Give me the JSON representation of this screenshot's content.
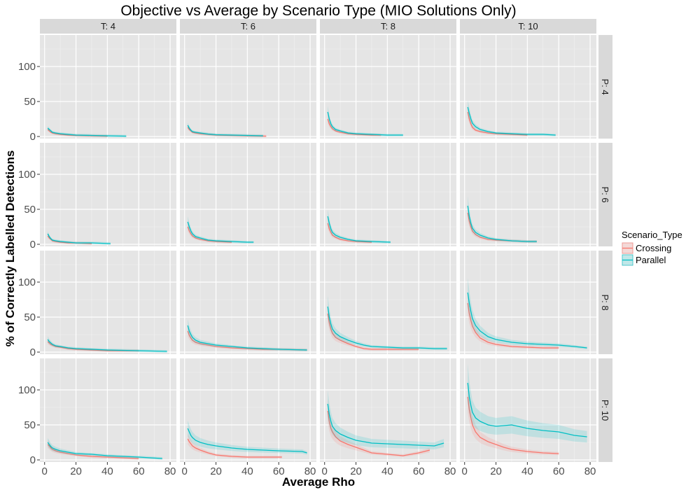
{
  "chart_data": {
    "type": "line",
    "title": "Objective vs Average by Scenario Type (MIO Solutions Only)",
    "xlabel": "Average Rho",
    "ylabel": "% of Correctly Labelled Detections",
    "xlim": [
      -3,
      84
    ],
    "ylim": [
      -3,
      145
    ],
    "x_ticks": [
      0,
      20,
      40,
      60,
      80
    ],
    "y_ticks": [
      0,
      50,
      100
    ],
    "grid": true,
    "legend": {
      "title": "Scenario_Type",
      "position": "right",
      "entries": [
        {
          "name": "Crossing",
          "color": "#F8766D"
        },
        {
          "name": "Parallel",
          "color": "#00BFC4"
        }
      ]
    },
    "facet_cols": [
      "T: 4",
      "T: 6",
      "T: 8",
      "T: 10"
    ],
    "facet_rows": [
      "P: 4",
      "P: 6",
      "P: 8",
      "P: 10"
    ],
    "panels": [
      {
        "row": 0,
        "col": 0,
        "series": [
          {
            "name": "Crossing",
            "x": [
              2,
              3,
              4,
              5,
              7,
              10,
              15,
              20,
              30,
              40
            ],
            "y": [
              10,
              8,
              6,
              5,
              4,
              3,
              2,
              1.5,
              1,
              0.5
            ]
          },
          {
            "name": "Parallel",
            "x": [
              2,
              3,
              4,
              5,
              7,
              10,
              15,
              20,
              30,
              40,
              52
            ],
            "y": [
              12,
              10,
              8,
              6,
              5,
              4,
              3,
              2,
              1.5,
              1,
              0.5
            ]
          }
        ]
      },
      {
        "row": 0,
        "col": 1,
        "series": [
          {
            "name": "Crossing",
            "x": [
              2,
              3,
              4,
              5,
              7,
              10,
              15,
              20,
              30,
              40,
              52
            ],
            "y": [
              13,
              10,
              8,
              6,
              5,
              4,
              3,
              2,
              1.5,
              1,
              0.5
            ]
          },
          {
            "name": "Parallel",
            "x": [
              2,
              3,
              4,
              5,
              7,
              10,
              15,
              20,
              30,
              40,
              50
            ],
            "y": [
              16,
              12,
              9,
              7,
              6,
              5,
              3.5,
              2.5,
              2,
              1.5,
              1
            ]
          }
        ]
      },
      {
        "row": 0,
        "col": 2,
        "series": [
          {
            "name": "Crossing",
            "x": [
              2,
              3,
              4,
              5,
              7,
              10,
              15,
              20,
              30,
              36
            ],
            "y": [
              25,
              18,
              14,
              11,
              8,
              6,
              4,
              3,
              2,
              2
            ]
          },
          {
            "name": "Parallel",
            "x": [
              2,
              3,
              4,
              5,
              7,
              10,
              15,
              20,
              30,
              40,
              50
            ],
            "y": [
              35,
              25,
              18,
              14,
              10,
              8,
              5,
              4,
              3,
              2,
              2
            ]
          }
        ]
      },
      {
        "row": 0,
        "col": 3,
        "series": [
          {
            "name": "Crossing",
            "x": [
              2,
              3,
              4,
              5,
              7,
              10,
              15,
              20,
              30,
              40
            ],
            "y": [
              35,
              25,
              18,
              13,
              9,
              7,
              5,
              4,
              3,
              2
            ]
          },
          {
            "name": "Parallel",
            "x": [
              2,
              3,
              4,
              5,
              7,
              10,
              15,
              20,
              30,
              40,
              50,
              58
            ],
            "y": [
              42,
              33,
              25,
              19,
              14,
              10,
              7,
              5,
              4,
              3,
              3,
              2
            ]
          }
        ]
      },
      {
        "row": 1,
        "col": 0,
        "series": [
          {
            "name": "Crossing",
            "x": [
              2,
              3,
              4,
              5,
              7,
              10,
              15,
              20,
              30
            ],
            "y": [
              12,
              9,
              7,
              5,
              4,
              3,
              2,
              2,
              1
            ]
          },
          {
            "name": "Parallel",
            "x": [
              2,
              3,
              4,
              5,
              7,
              10,
              15,
              20,
              30,
              42
            ],
            "y": [
              15,
              11,
              8,
              6,
              5,
              4,
              3,
              2,
              2,
              1
            ]
          }
        ]
      },
      {
        "row": 1,
        "col": 1,
        "series": [
          {
            "name": "Crossing",
            "x": [
              2,
              3,
              4,
              5,
              7,
              10,
              15,
              20,
              30
            ],
            "y": [
              25,
              19,
              15,
              12,
              9,
              7,
              5,
              4,
              3
            ]
          },
          {
            "name": "Parallel",
            "x": [
              2,
              3,
              4,
              5,
              7,
              10,
              15,
              20,
              30,
              40,
              44
            ],
            "y": [
              32,
              25,
              19,
              15,
              11,
              9,
              6,
              5,
              4,
              3,
              3
            ]
          }
        ]
      },
      {
        "row": 1,
        "col": 2,
        "series": [
          {
            "name": "Crossing",
            "x": [
              2,
              3,
              4,
              5,
              7,
              10,
              15,
              20,
              30
            ],
            "y": [
              30,
              22,
              17,
              13,
              10,
              7,
              5,
              4,
              3
            ]
          },
          {
            "name": "Parallel",
            "x": [
              2,
              3,
              4,
              5,
              7,
              10,
              15,
              20,
              30,
              42
            ],
            "y": [
              40,
              30,
              22,
              17,
              13,
              10,
              7,
              5,
              4,
              3
            ]
          }
        ]
      },
      {
        "row": 1,
        "col": 3,
        "series": [
          {
            "name": "Crossing",
            "x": [
              2,
              3,
              4,
              5,
              7,
              10,
              15,
              20,
              30,
              40,
              46
            ],
            "y": [
              45,
              33,
              25,
              19,
              14,
              10,
              7,
              6,
              5,
              4,
              4
            ]
          },
          {
            "name": "Parallel",
            "x": [
              2,
              3,
              4,
              5,
              7,
              10,
              15,
              20,
              30,
              40,
              46
            ],
            "y": [
              55,
              40,
              30,
              23,
              17,
              13,
              9,
              7,
              5,
              4,
              4
            ]
          }
        ]
      },
      {
        "row": 2,
        "col": 0,
        "series": [
          {
            "name": "Crossing",
            "x": [
              2,
              3,
              4,
              5,
              7,
              10,
              15,
              20,
              30,
              40,
              60
            ],
            "y": [
              15,
              13,
              11,
              10,
              8,
              7,
              5,
              4,
              3,
              2,
              2
            ]
          },
          {
            "name": "Parallel",
            "x": [
              2,
              3,
              4,
              5,
              7,
              10,
              15,
              20,
              30,
              40,
              60,
              78
            ],
            "y": [
              18,
              15,
              13,
              11,
              9,
              8,
              6,
              5,
              4,
              3,
              2,
              1
            ]
          }
        ]
      },
      {
        "row": 2,
        "col": 1,
        "series": [
          {
            "name": "Crossing",
            "x": [
              2,
              3,
              4,
              5,
              7,
              10,
              15,
              20,
              30,
              40,
              50,
              60,
              78
            ],
            "y": [
              30,
              24,
              20,
              17,
              14,
              12,
              10,
              8,
              6,
              5,
              4,
              4,
              3
            ]
          },
          {
            "name": "Parallel",
            "x": [
              2,
              3,
              4,
              5,
              7,
              10,
              15,
              20,
              30,
              40,
              50,
              60,
              78
            ],
            "y": [
              38,
              30,
              25,
              21,
              17,
              14,
              12,
              10,
              8,
              6,
              5,
              4,
              3
            ]
          }
        ]
      },
      {
        "row": 2,
        "col": 2,
        "series": [
          {
            "name": "Crossing",
            "x": [
              2,
              3,
              4,
              5,
              7,
              10,
              15,
              20,
              25,
              30,
              40,
              50,
              60
            ],
            "y": [
              55,
              42,
              33,
              27,
              21,
              17,
              12,
              8,
              5,
              4,
              4,
              4,
              4
            ]
          },
          {
            "name": "Parallel",
            "x": [
              2,
              3,
              4,
              5,
              7,
              10,
              15,
              20,
              25,
              30,
              40,
              50,
              60,
              70,
              78
            ],
            "y": [
              65,
              50,
              40,
              33,
              27,
              22,
              17,
              13,
              10,
              8,
              7,
              6,
              6,
              5,
              5
            ]
          }
        ]
      },
      {
        "row": 2,
        "col": 3,
        "series": [
          {
            "name": "Crossing",
            "x": [
              2,
              3,
              4,
              5,
              7,
              10,
              15,
              20,
              30,
              40,
              50,
              60
            ],
            "y": [
              70,
              55,
              45,
              37,
              28,
              20,
              14,
              11,
              8,
              7,
              6,
              6
            ]
          },
          {
            "name": "Parallel",
            "x": [
              2,
              3,
              4,
              5,
              7,
              10,
              15,
              20,
              30,
              40,
              50,
              60,
              70,
              78
            ],
            "y": [
              85,
              70,
              58,
              48,
              38,
              30,
              22,
              18,
              14,
              12,
              11,
              10,
              8,
              6
            ]
          }
        ]
      },
      {
        "row": 3,
        "col": 0,
        "series": [
          {
            "name": "Crossing",
            "x": [
              2,
              3,
              4,
              5,
              7,
              10,
              15,
              20,
              30,
              40,
              50,
              60
            ],
            "y": [
              22,
              20,
              17,
              15,
              13,
              11,
              9,
              7,
              5,
              4,
              3,
              2
            ]
          },
          {
            "name": "Parallel",
            "x": [
              2,
              3,
              4,
              5,
              7,
              10,
              15,
              20,
              30,
              40,
              50,
              60,
              75
            ],
            "y": [
              25,
              22,
              19,
              17,
              15,
              13,
              11,
              9,
              8,
              6,
              5,
              4,
              2
            ]
          }
        ]
      },
      {
        "row": 3,
        "col": 1,
        "series": [
          {
            "name": "Crossing",
            "x": [
              2,
              3,
              4,
              5,
              7,
              10,
              15,
              20,
              30,
              40,
              50,
              62
            ],
            "y": [
              30,
              26,
              23,
              20,
              17,
              14,
              10,
              7,
              5,
              4,
              4,
              4
            ]
          },
          {
            "name": "Parallel",
            "x": [
              2,
              3,
              4,
              5,
              7,
              10,
              15,
              20,
              30,
              40,
              50,
              60,
              75,
              78
            ],
            "y": [
              45,
              40,
              35,
              32,
              28,
              25,
              22,
              20,
              17,
              15,
              14,
              13,
              12,
              10
            ]
          }
        ]
      },
      {
        "row": 3,
        "col": 2,
        "series": [
          {
            "name": "Crossing",
            "x": [
              2,
              3,
              4,
              5,
              7,
              10,
              15,
              20,
              25,
              30,
              40,
              50,
              60,
              67
            ],
            "y": [
              70,
              55,
              45,
              40,
              33,
              27,
              22,
              18,
              14,
              10,
              8,
              6,
              10,
              14
            ]
          },
          {
            "name": "Parallel",
            "x": [
              2,
              3,
              4,
              5,
              7,
              10,
              15,
              20,
              25,
              30,
              40,
              50,
              60,
              70,
              76
            ],
            "y": [
              80,
              65,
              55,
              48,
              42,
              37,
              32,
              28,
              26,
              24,
              23,
              22,
              21,
              20,
              24
            ]
          }
        ]
      },
      {
        "row": 3,
        "col": 3,
        "series": [
          {
            "name": "Crossing",
            "x": [
              2,
              3,
              4,
              5,
              7,
              10,
              15,
              20,
              25,
              30,
              40,
              50,
              60
            ],
            "y": [
              90,
              72,
              60,
              50,
              40,
              32,
              26,
              22,
              18,
              15,
              12,
              10,
              9
            ]
          },
          {
            "name": "Parallel",
            "x": [
              2,
              3,
              4,
              5,
              7,
              10,
              15,
              20,
              30,
              40,
              50,
              60,
              70,
              78
            ],
            "y": [
              110,
              90,
              78,
              68,
              60,
              55,
              50,
              48,
              50,
              45,
              42,
              40,
              35,
              33
            ]
          }
        ]
      }
    ]
  }
}
